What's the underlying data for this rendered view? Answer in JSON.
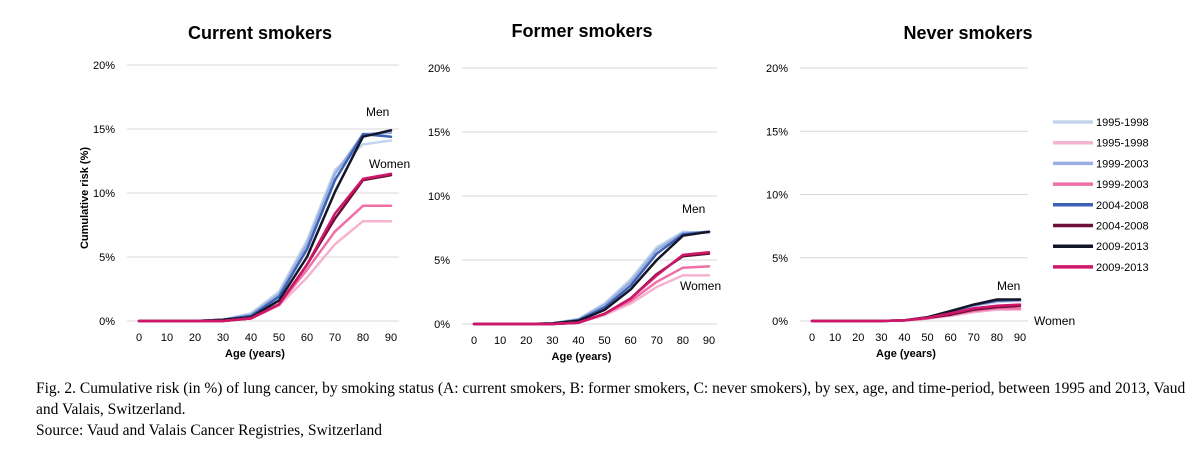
{
  "chart_data": [
    {
      "type": "line",
      "title": "Current smokers",
      "xlabel": "Age (years)",
      "ylabel": "Cumulative risk (%)",
      "x": [
        0,
        10,
        20,
        30,
        40,
        50,
        60,
        70,
        80,
        90
      ],
      "ylim": [
        0,
        20
      ],
      "yticks": [
        "0%",
        "5%",
        "10%",
        "15%",
        "20%"
      ],
      "annotations": [
        "Men",
        "Women"
      ],
      "series": [
        {
          "name": "1995-1998",
          "sex": "Men",
          "values": [
            0,
            0,
            0,
            0.1,
            0.6,
            2.3,
            6.3,
            11.8,
            13.8,
            14.1
          ]
        },
        {
          "name": "1995-1998",
          "sex": "Women",
          "values": [
            0,
            0,
            0,
            0,
            0.2,
            1.2,
            3.4,
            6.0,
            7.8,
            7.8
          ]
        },
        {
          "name": "1999-2003",
          "sex": "Men",
          "values": [
            0,
            0,
            0,
            0.1,
            0.5,
            2.1,
            6.0,
            11.5,
            14.6,
            14.7
          ]
        },
        {
          "name": "1999-2003",
          "sex": "Women",
          "values": [
            0,
            0,
            0,
            0,
            0.2,
            1.3,
            4.0,
            7.0,
            9.0,
            9.0
          ]
        },
        {
          "name": "2004-2008",
          "sex": "Men",
          "values": [
            0,
            0,
            0,
            0.1,
            0.4,
            1.9,
            5.6,
            11.0,
            14.6,
            14.4
          ]
        },
        {
          "name": "2004-2008",
          "sex": "Women",
          "values": [
            0,
            0,
            0,
            0,
            0.2,
            1.3,
            4.4,
            8.0,
            11.0,
            11.4
          ]
        },
        {
          "name": "2009-2013",
          "sex": "Men",
          "values": [
            0,
            0,
            0,
            0.1,
            0.3,
            1.6,
            5.0,
            10.1,
            14.4,
            14.9
          ]
        },
        {
          "name": "2009-2013",
          "sex": "Women",
          "values": [
            0,
            0,
            0,
            0,
            0.2,
            1.3,
            4.4,
            8.4,
            11.1,
            11.5
          ]
        }
      ]
    },
    {
      "type": "line",
      "title": "Former smokers",
      "xlabel": "Age (years)",
      "ylabel": "",
      "x": [
        0,
        10,
        20,
        30,
        40,
        50,
        60,
        70,
        80,
        90
      ],
      "ylim": [
        0,
        20
      ],
      "yticks": [
        "0%",
        "5%",
        "10%",
        "15%",
        "20%"
      ],
      "annotations": [
        "Men",
        "Women"
      ],
      "series": [
        {
          "name": "1995-1998",
          "sex": "Men",
          "values": [
            0,
            0,
            0,
            0.05,
            0.4,
            1.6,
            3.5,
            6.0,
            7.2,
            7.1
          ]
        },
        {
          "name": "1995-1998",
          "sex": "Women",
          "values": [
            0,
            0,
            0,
            0,
            0.1,
            0.7,
            1.6,
            2.9,
            3.8,
            3.8
          ]
        },
        {
          "name": "1999-2003",
          "sex": "Men",
          "values": [
            0,
            0,
            0,
            0.05,
            0.35,
            1.5,
            3.3,
            5.8,
            7.1,
            7.2
          ]
        },
        {
          "name": "1999-2003",
          "sex": "Women",
          "values": [
            0,
            0,
            0,
            0,
            0.1,
            0.8,
            1.8,
            3.3,
            4.4,
            4.5
          ]
        },
        {
          "name": "2004-2008",
          "sex": "Men",
          "values": [
            0,
            0,
            0,
            0.05,
            0.3,
            1.3,
            3.0,
            5.5,
            7.0,
            7.2
          ]
        },
        {
          "name": "2004-2008",
          "sex": "Women",
          "values": [
            0,
            0,
            0,
            0,
            0.1,
            0.8,
            2.0,
            3.9,
            5.3,
            5.5
          ]
        },
        {
          "name": "2009-2013",
          "sex": "Men",
          "values": [
            0,
            0,
            0,
            0.05,
            0.25,
            1.1,
            2.7,
            5.0,
            6.9,
            7.2
          ]
        },
        {
          "name": "2009-2013",
          "sex": "Women",
          "values": [
            0,
            0,
            0,
            0,
            0.1,
            0.8,
            2.0,
            3.8,
            5.4,
            5.6
          ]
        }
      ]
    },
    {
      "type": "line",
      "title": "Never smokers",
      "xlabel": "Age (years)",
      "ylabel": "",
      "x": [
        0,
        10,
        20,
        30,
        40,
        50,
        60,
        70,
        80,
        90
      ],
      "ylim": [
        0,
        20
      ],
      "yticks": [
        "0%",
        "5%",
        "10%",
        "15%",
        "20%"
      ],
      "annotations": [
        "Men",
        "Women"
      ],
      "series": [
        {
          "name": "1995-1998",
          "sex": "Men",
          "values": [
            0,
            0,
            0,
            0,
            0.05,
            0.3,
            0.7,
            1.2,
            1.5,
            1.6
          ]
        },
        {
          "name": "1995-1998",
          "sex": "Women",
          "values": [
            0,
            0,
            0,
            0,
            0.05,
            0.2,
            0.4,
            0.7,
            0.9,
            0.9
          ]
        },
        {
          "name": "1999-2003",
          "sex": "Men",
          "values": [
            0,
            0,
            0,
            0,
            0.05,
            0.3,
            0.7,
            1.2,
            1.6,
            1.6
          ]
        },
        {
          "name": "1999-2003",
          "sex": "Women",
          "values": [
            0,
            0,
            0,
            0,
            0.05,
            0.2,
            0.5,
            0.8,
            1.0,
            1.0
          ]
        },
        {
          "name": "2004-2008",
          "sex": "Men",
          "values": [
            0,
            0,
            0,
            0,
            0.05,
            0.3,
            0.7,
            1.3,
            1.6,
            1.7
          ]
        },
        {
          "name": "2004-2008",
          "sex": "Women",
          "values": [
            0,
            0,
            0,
            0,
            0.05,
            0.25,
            0.5,
            0.9,
            1.1,
            1.2
          ]
        },
        {
          "name": "2009-2013",
          "sex": "Men",
          "values": [
            0,
            0,
            0,
            0,
            0.05,
            0.3,
            0.8,
            1.3,
            1.7,
            1.7
          ]
        },
        {
          "name": "2009-2013",
          "sex": "Women",
          "values": [
            0,
            0,
            0,
            0,
            0.05,
            0.25,
            0.6,
            1.0,
            1.2,
            1.3
          ]
        }
      ]
    }
  ],
  "legend": {
    "entries": [
      {
        "label": "1995-1998",
        "color": "#c3d5ea"
      },
      {
        "label": "1995-1998",
        "color": "#f6b3cf"
      },
      {
        "label": "1999-2003",
        "color": "#98aee2"
      },
      {
        "label": "1999-2003",
        "color": "#ef6fa6"
      },
      {
        "label": "2004-2008",
        "color": "#3d62b4"
      },
      {
        "label": "2004-2008",
        "color": "#6d0f3a"
      },
      {
        "label": "2009-2013",
        "color": "#15152a"
      },
      {
        "label": "2009-2013",
        "color": "#cf1669"
      }
    ]
  },
  "caption": {
    "line1": "Fig. 2. Cumulative risk (in %) of lung cancer, by smoking status (A: current smokers, B: former smokers, C: never smokers), by sex, age, and time-period, between 1995 and 2013, Vaud and Valais, Switzerland.",
    "source": "Source: Vaud and Valais Cancer Registries, Switzerland"
  }
}
